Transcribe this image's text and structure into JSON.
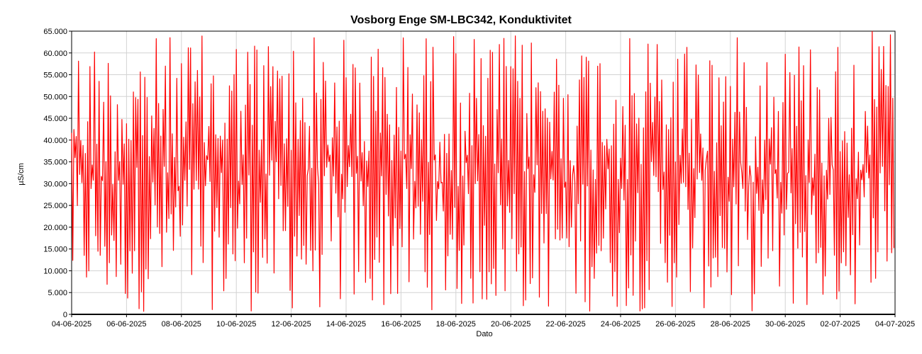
{
  "chart_data": {
    "type": "line",
    "title": "Vosborg Enge SM-LBC342, Konduktivitet",
    "xlabel": "Dato",
    "ylabel": "µS/cm",
    "ylim": [
      0,
      65000
    ],
    "yticks": [
      0,
      5000,
      10000,
      15000,
      20000,
      25000,
      30000,
      35000,
      40000,
      45000,
      50000,
      55000,
      60000,
      65000
    ],
    "ytick_labels": [
      "0",
      "5.000",
      "10.000",
      "15.000",
      "20.000",
      "25.000",
      "30.000",
      "35.000",
      "40.000",
      "45.000",
      "50.000",
      "55.000",
      "60.000",
      "65.000"
    ],
    "xlim": [
      "2025-06-04",
      "2025-07-04"
    ],
    "xticks": [
      "2025-06-04",
      "2025-06-06",
      "2025-06-08",
      "2025-06-10",
      "2025-06-12",
      "2025-06-14",
      "2025-06-16",
      "2025-06-18",
      "2025-06-20",
      "2025-06-22",
      "2025-06-24",
      "2025-06-26",
      "2025-06-28",
      "2025-06-30",
      "2025-07-02",
      "2025-07-04"
    ],
    "xtick_labels": [
      "04-06-2025",
      "06-06-2025",
      "08-06-2025",
      "10-06-2025",
      "12-06-2025",
      "14-06-2025",
      "16-06-2025",
      "18-06-2025",
      "20-06-2025",
      "22-06-2025",
      "24-06-2025",
      "26-06-2025",
      "28-06-2025",
      "30-06-2025",
      "02-07-2025",
      "04-07-2025"
    ],
    "grid": true,
    "legend": "none",
    "series": [
      {
        "color": "#ff0000",
        "x": [
          "2025-06-04",
          "2025-06-05",
          "2025-06-06",
          "2025-06-07",
          "2025-06-08",
          "2025-06-09",
          "2025-06-10",
          "2025-06-11",
          "2025-06-12",
          "2025-06-13",
          "2025-06-14",
          "2025-06-15",
          "2025-06-16",
          "2025-06-17",
          "2025-06-18",
          "2025-06-19",
          "2025-06-20",
          "2025-06-21",
          "2025-06-22",
          "2025-06-23",
          "2025-06-24",
          "2025-06-25",
          "2025-06-26",
          "2025-06-27",
          "2025-06-28",
          "2025-06-29",
          "2025-06-30",
          "2025-07-01",
          "2025-07-02",
          "2025-07-03"
        ],
        "y_min": [
          2000,
          1000,
          500,
          800,
          600,
          900,
          500,
          700,
          400,
          600,
          300,
          800,
          500,
          900,
          600,
          700,
          400,
          800,
          500,
          700,
          600,
          900,
          500,
          800,
          400,
          700,
          300,
          600,
          1500,
          7000
        ],
        "y_max": [
          64000,
          63000,
          64500,
          64000,
          64200,
          63500,
          65000,
          64800,
          65000,
          63800,
          64500,
          63000,
          65000,
          64900,
          64000,
          63800,
          64500,
          63500,
          64000,
          64800,
          63500,
          64500,
          65000,
          64000,
          63800,
          65000,
          64500,
          64000,
          65000,
          65000
        ]
      }
    ]
  }
}
